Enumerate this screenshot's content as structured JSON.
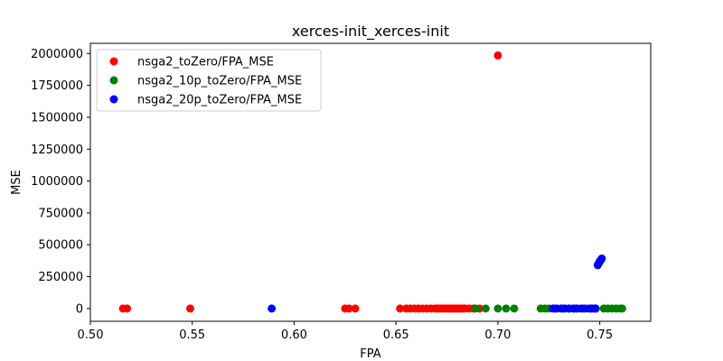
{
  "chart_data": {
    "type": "scatter",
    "title": "xerces-init_xerces-init",
    "xlabel": "FPA",
    "ylabel": "MSE",
    "xlim": [
      0.5,
      0.775
    ],
    "ylim": [
      -100000,
      2080000
    ],
    "xticks": [
      0.5,
      0.55,
      0.6,
      0.65,
      0.7,
      0.75
    ],
    "xtick_labels": [
      "0.50",
      "0.55",
      "0.60",
      "0.65",
      "0.70",
      "0.75"
    ],
    "yticks": [
      0,
      250000,
      500000,
      750000,
      1000000,
      1250000,
      1500000,
      1750000,
      2000000
    ],
    "ytick_labels": [
      "0",
      "250000",
      "500000",
      "750000",
      "1000000",
      "1250000",
      "1500000",
      "1750000",
      "2000000"
    ],
    "grid": false,
    "legend_position": "top-left",
    "series": [
      {
        "name": "nsga2_toZero/FPA_MSE",
        "color": "#ff0000",
        "points": [
          [
            0.516,
            0
          ],
          [
            0.518,
            0
          ],
          [
            0.549,
            0
          ],
          [
            0.625,
            0
          ],
          [
            0.627,
            0
          ],
          [
            0.63,
            0
          ],
          [
            0.652,
            0
          ],
          [
            0.655,
            0
          ],
          [
            0.657,
            0
          ],
          [
            0.659,
            0
          ],
          [
            0.661,
            0
          ],
          [
            0.663,
            0
          ],
          [
            0.665,
            0
          ],
          [
            0.667,
            0
          ],
          [
            0.669,
            0
          ],
          [
            0.67,
            0
          ],
          [
            0.671,
            0
          ],
          [
            0.672,
            0
          ],
          [
            0.673,
            0
          ],
          [
            0.674,
            0
          ],
          [
            0.675,
            0
          ],
          [
            0.676,
            0
          ],
          [
            0.677,
            0
          ],
          [
            0.678,
            0
          ],
          [
            0.679,
            0
          ],
          [
            0.68,
            0
          ],
          [
            0.681,
            0
          ],
          [
            0.682,
            0
          ],
          [
            0.683,
            0
          ],
          [
            0.684,
            0
          ],
          [
            0.686,
            0
          ],
          [
            0.688,
            0
          ],
          [
            0.691,
            0
          ],
          [
            0.7,
            1985000
          ]
        ]
      },
      {
        "name": "nsga2_10p_toZero/FPA_MSE",
        "color": "#008000",
        "points": [
          [
            0.689,
            0
          ],
          [
            0.694,
            0
          ],
          [
            0.7,
            0
          ],
          [
            0.704,
            0
          ],
          [
            0.708,
            0
          ],
          [
            0.721,
            0
          ],
          [
            0.723,
            0
          ],
          [
            0.725,
            0
          ],
          [
            0.728,
            0
          ],
          [
            0.732,
            0
          ],
          [
            0.735,
            0
          ],
          [
            0.738,
            0
          ],
          [
            0.742,
            0
          ],
          [
            0.745,
            0
          ],
          [
            0.748,
            0
          ],
          [
            0.752,
            0
          ],
          [
            0.754,
            0
          ],
          [
            0.756,
            0
          ],
          [
            0.758,
            0
          ],
          [
            0.76,
            0
          ],
          [
            0.761,
            0
          ]
        ]
      },
      {
        "name": "nsga2_20p_toZero/FPA_MSE",
        "color": "#0000ff",
        "points": [
          [
            0.589,
            0
          ],
          [
            0.727,
            0
          ],
          [
            0.729,
            0
          ],
          [
            0.731,
            0
          ],
          [
            0.733,
            0
          ],
          [
            0.735,
            0
          ],
          [
            0.737,
            0
          ],
          [
            0.739,
            0
          ],
          [
            0.741,
            0
          ],
          [
            0.743,
            0
          ],
          [
            0.745,
            0
          ],
          [
            0.746,
            0
          ],
          [
            0.747,
            0
          ],
          [
            0.748,
            0
          ],
          [
            0.749,
            340000
          ],
          [
            0.7495,
            355000
          ],
          [
            0.75,
            370000
          ],
          [
            0.7505,
            380000
          ],
          [
            0.751,
            392000
          ]
        ]
      }
    ]
  }
}
